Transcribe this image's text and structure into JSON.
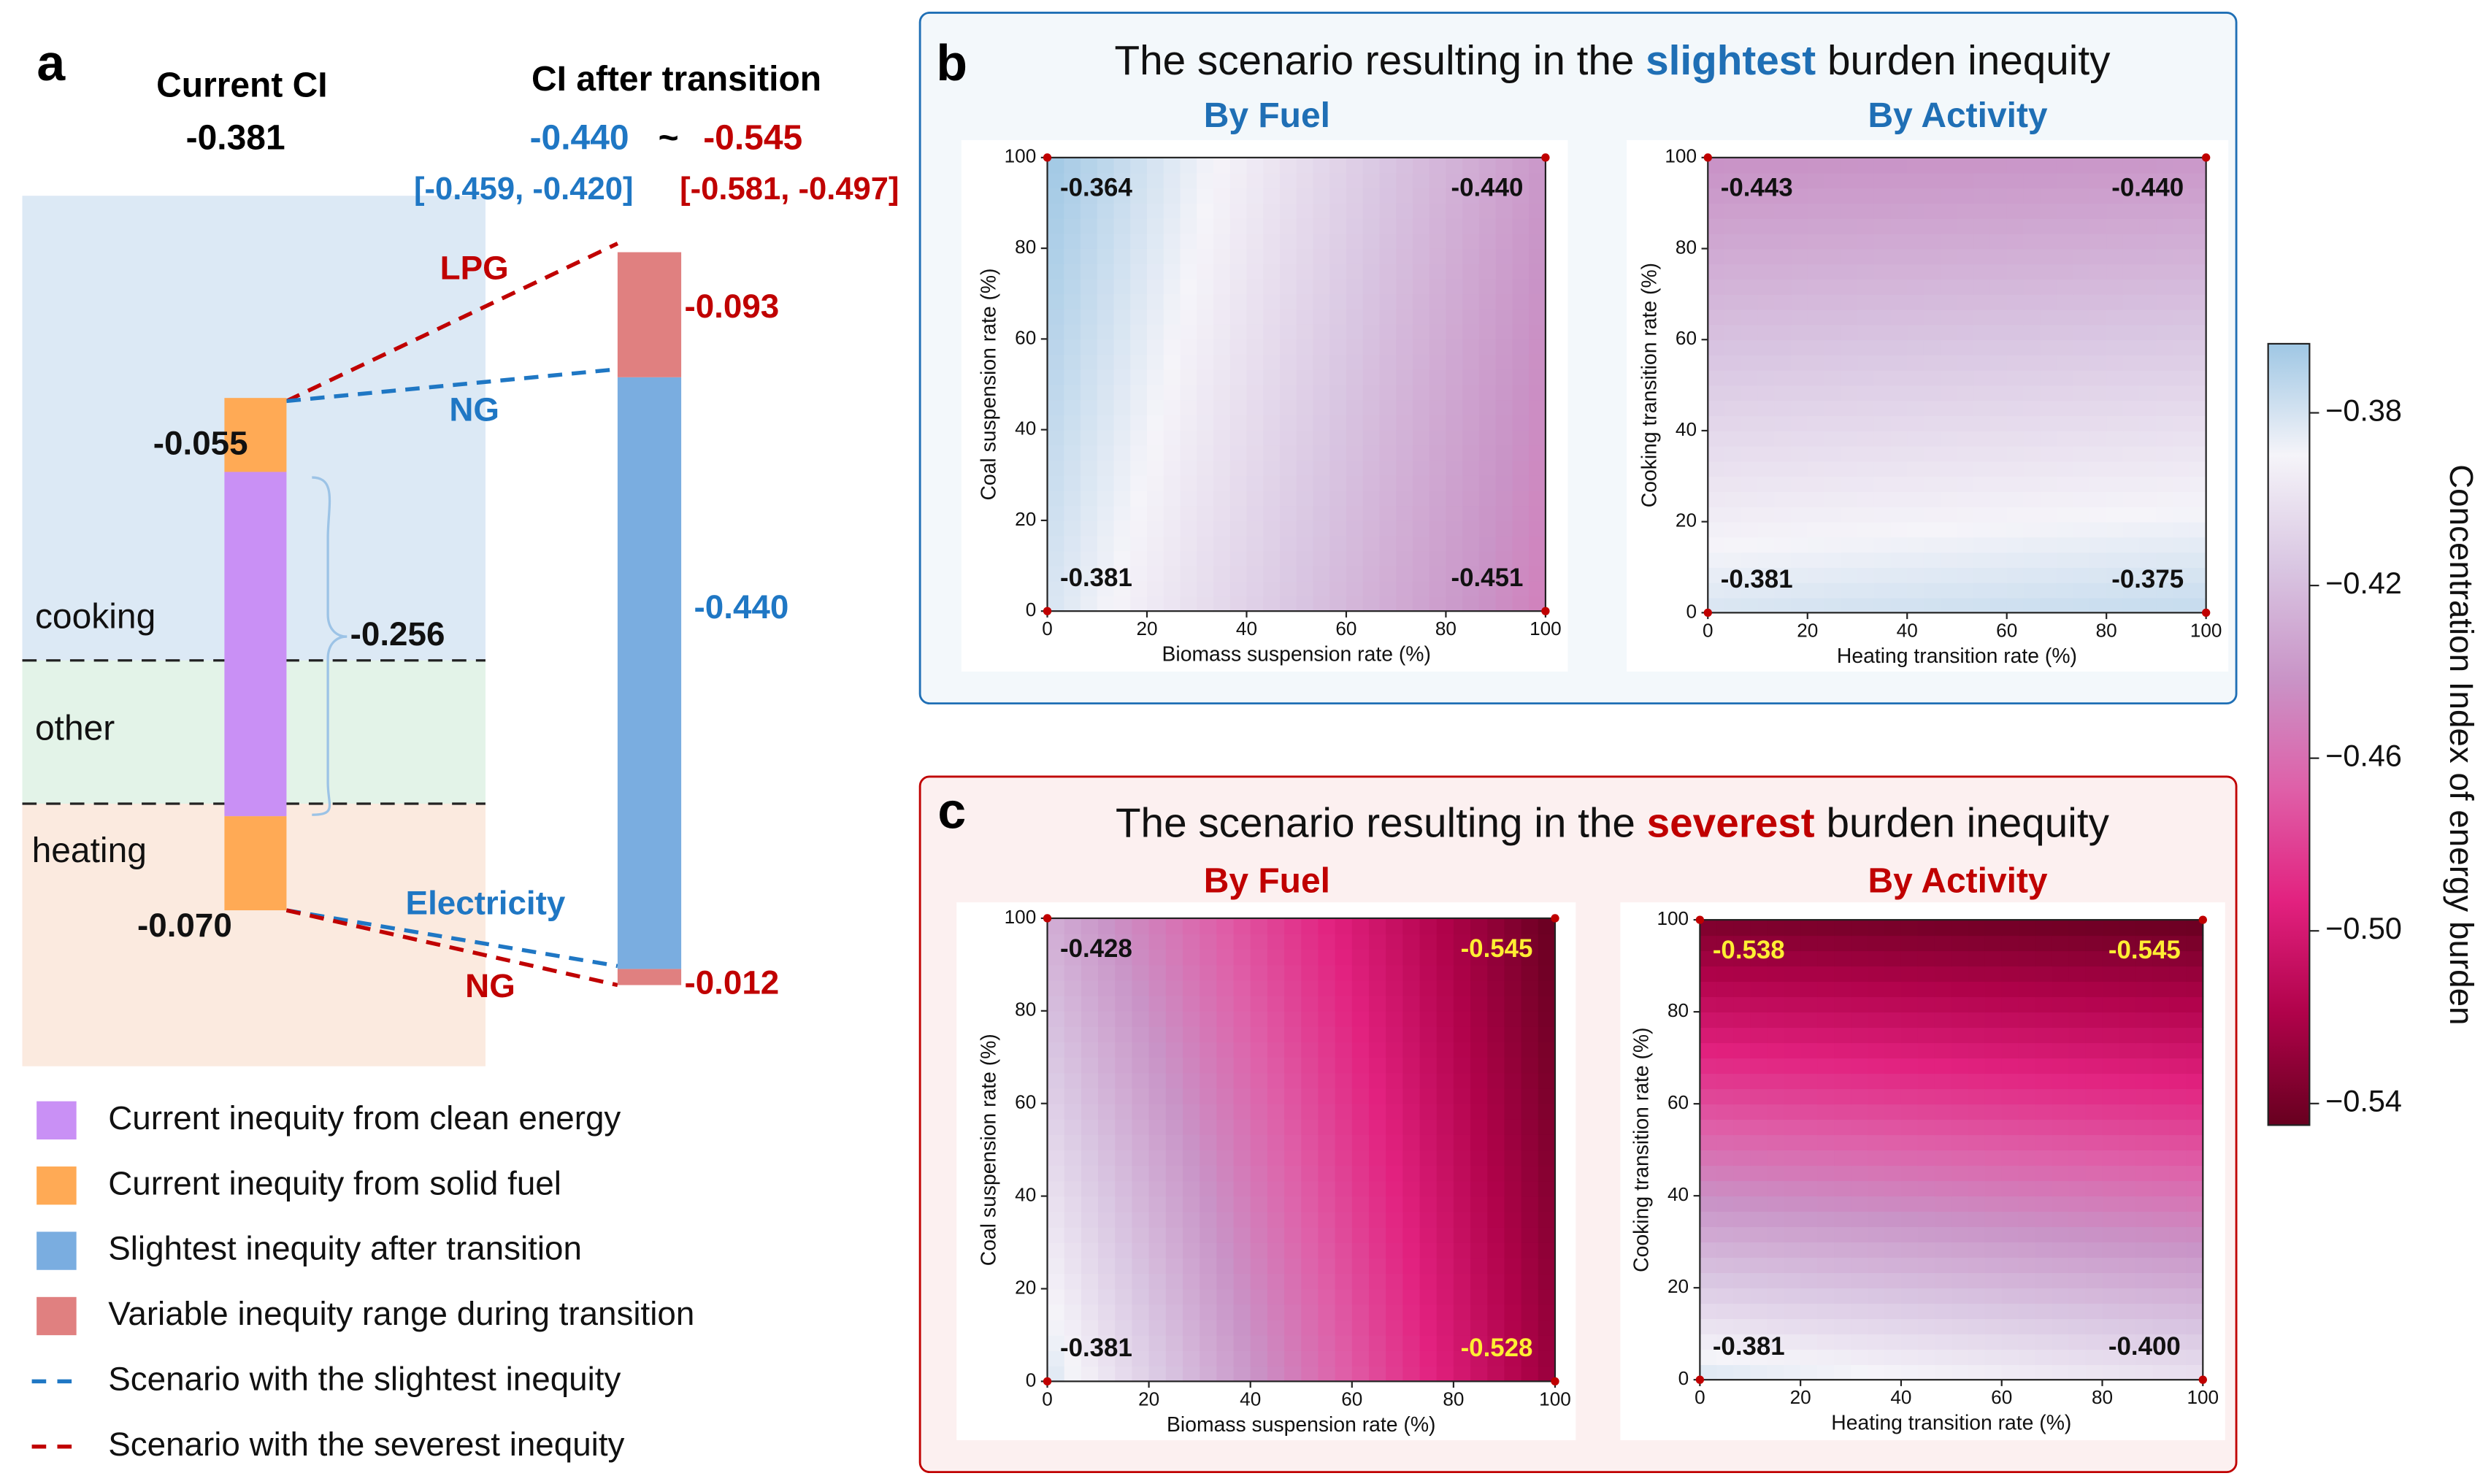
{
  "panels": [
    {
      "label": "b",
      "title": {
        "prefix": "The scenario resulting in the",
        "highlight": "slightest",
        "suffix": "burden inequity"
      },
      "color": "#1f6fb5",
      "background": "#f3f8fb"
    },
    {
      "label": "c",
      "title": {
        "prefix": "The scenario resulting in the",
        "highlight": "severest",
        "suffix": "burden inequity"
      },
      "color": "#c00000",
      "background": "#fcf0f0"
    }
  ],
  "chart_data": [
    {
      "type": "stacked-bar",
      "panel_label": "a",
      "regions": [
        {
          "label": "cooking",
          "color": "#dce9f5"
        },
        {
          "label": "other",
          "color": "#e3f3e8"
        },
        {
          "label": "heating",
          "color": "#fbeadf"
        }
      ],
      "stacks": [
        {
          "title": "Current CI",
          "total": "-0.381",
          "segments": [
            {
              "value": -0.07,
              "label": "-0.070",
              "color": "#ffaa55"
            },
            {
              "value": -0.256,
              "label": "-0.256",
              "color": "#c990f5"
            },
            {
              "value": -0.055,
              "label": "-0.055",
              "color": "#ffaa55"
            }
          ]
        },
        {
          "title": "CI after transition",
          "range": [
            "-0.440",
            "-0.545"
          ],
          "separator": "~",
          "intervals": [
            "[-0.459, -0.420]",
            "[-0.581, -0.497]"
          ],
          "range_colors": [
            "#1f77c4",
            "#c00000"
          ],
          "segments": [
            {
              "value": -0.012,
              "label": "-0.012",
              "color": "#e08080"
            },
            {
              "value": -0.44,
              "label": "-0.440",
              "color": "#7aade0"
            },
            {
              "value": -0.093,
              "label": "-0.093",
              "color": "#e08080"
            }
          ]
        }
      ],
      "connectors": [
        {
          "label": "LPG",
          "color": "#c00000"
        },
        {
          "label": "NG",
          "color": "#1f77c4"
        },
        {
          "label": "Electricity",
          "color": "#1f77c4"
        },
        {
          "label": "NG",
          "color": "#c00000"
        }
      ],
      "legend": [
        {
          "name": "Current inequity from clean energy",
          "color": "#c990f5",
          "kind": "box"
        },
        {
          "name": "Current inequity from solid fuel",
          "color": "#ffaa55",
          "kind": "box"
        },
        {
          "name": "Slightest inequity after transition",
          "color": "#7aade0",
          "kind": "box"
        },
        {
          "name": "Variable inequity range during transition",
          "color": "#e08080",
          "kind": "box"
        },
        {
          "name": "Scenario with the slightest inequity",
          "color": "#1f77c4",
          "kind": "dashed"
        },
        {
          "name": "Scenario with the severest inequity",
          "color": "#c00000",
          "kind": "dashed"
        }
      ]
    },
    {
      "type": "heatmap",
      "title": "By Fuel",
      "title_color": "#1f6fb5",
      "xlabel": "Biomass suspension rate (%)",
      "ylabel": "Coal suspension rate (%)",
      "xlim": [
        0,
        100
      ],
      "ylim": [
        0,
        100
      ],
      "xticks": [
        0,
        20,
        40,
        60,
        80,
        100
      ],
      "yticks": [
        0,
        20,
        40,
        60,
        80,
        100
      ],
      "z": [
        [
          -0.381,
          -0.451
        ],
        [
          -0.364,
          -0.44
        ]
      ],
      "value_labels": [
        [
          "-0.381",
          "-0.451"
        ],
        [
          "-0.364",
          "-0.440"
        ]
      ],
      "label_colors": [
        [
          "#111111",
          "#111111"
        ],
        [
          "#111111",
          "#111111"
        ]
      ]
    },
    {
      "type": "heatmap",
      "title": "By Activity",
      "title_color": "#1f6fb5",
      "xlabel": "Heating transition rate (%)",
      "ylabel": "Cooking transition rate (%)",
      "xlim": [
        0,
        100
      ],
      "ylim": [
        0,
        100
      ],
      "xticks": [
        0,
        20,
        40,
        60,
        80,
        100
      ],
      "yticks": [
        0,
        20,
        40,
        60,
        80,
        100
      ],
      "z": [
        [
          -0.381,
          -0.375
        ],
        [
          -0.443,
          -0.44
        ]
      ],
      "value_labels": [
        [
          "-0.381",
          "-0.375"
        ],
        [
          "-0.443",
          "-0.440"
        ]
      ],
      "label_colors": [
        [
          "#111111",
          "#111111"
        ],
        [
          "#111111",
          "#111111"
        ]
      ]
    },
    {
      "type": "heatmap",
      "title": "By Fuel",
      "title_color": "#c00000",
      "xlabel": "Biomass suspension rate (%)",
      "ylabel": "Coal suspension rate (%)",
      "xlim": [
        0,
        100
      ],
      "ylim": [
        0,
        100
      ],
      "xticks": [
        0,
        20,
        40,
        60,
        80,
        100
      ],
      "yticks": [
        0,
        20,
        40,
        60,
        80,
        100
      ],
      "z": [
        [
          -0.381,
          -0.528
        ],
        [
          -0.428,
          -0.545
        ]
      ],
      "value_labels": [
        [
          "-0.381",
          "-0.528"
        ],
        [
          "-0.428",
          "-0.545"
        ]
      ],
      "label_colors": [
        [
          "#111111",
          "#ffee33"
        ],
        [
          "#111111",
          "#ffee33"
        ]
      ]
    },
    {
      "type": "heatmap",
      "title": "By Activity",
      "title_color": "#c00000",
      "xlabel": "Heating transition rate (%)",
      "ylabel": "Cooking transition rate (%)",
      "xlim": [
        0,
        100
      ],
      "ylim": [
        0,
        100
      ],
      "xticks": [
        0,
        20,
        40,
        60,
        80,
        100
      ],
      "yticks": [
        0,
        20,
        40,
        60,
        80,
        100
      ],
      "z": [
        [
          -0.381,
          -0.4
        ],
        [
          -0.538,
          -0.545
        ]
      ],
      "value_labels": [
        [
          "-0.381",
          "-0.400"
        ],
        [
          "-0.538",
          "-0.545"
        ]
      ],
      "label_colors": [
        [
          "#111111",
          "#111111"
        ],
        [
          "#ffee33",
          "#ffee33"
        ]
      ]
    },
    {
      "type": "colorbar",
      "label": "Concentration Index of energy burden",
      "zlim": [
        -0.545,
        -0.364
      ],
      "ticks": [
        {
          "value": -0.38,
          "label": "−0.38"
        },
        {
          "value": -0.42,
          "label": "−0.42"
        },
        {
          "value": -0.46,
          "label": "−0.46"
        },
        {
          "value": -0.5,
          "label": "−0.50"
        },
        {
          "value": -0.54,
          "label": "−0.54"
        }
      ],
      "colors": [
        "#67001f",
        "#b0024a",
        "#e2217f",
        "#df5fa8",
        "#c994c7",
        "#d9c6e2",
        "#f5f4f9",
        "#9fc7e4"
      ]
    }
  ]
}
